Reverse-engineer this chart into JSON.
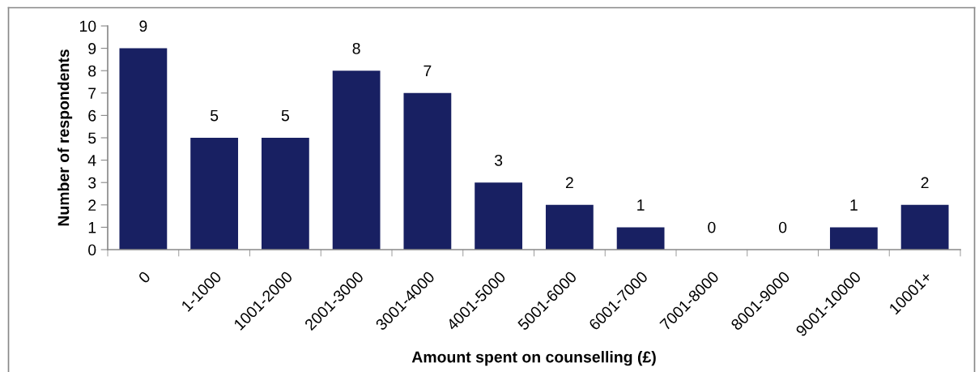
{
  "chart_data": {
    "type": "bar",
    "xlabel": "Amount spent on counselling (£)",
    "ylabel": "Number of respondents",
    "categories": [
      "0",
      "1-1000",
      "1001-2000",
      "2001-3000",
      "3001-4000",
      "4001-5000",
      "5001-6000",
      "6001-7000",
      "7001-8000",
      "8001-9000",
      "9001-10000",
      "10001+"
    ],
    "values": [
      9,
      5,
      5,
      8,
      7,
      3,
      2,
      1,
      0,
      0,
      1,
      2
    ],
    "color": "#182062",
    "ylim": [
      0,
      10
    ],
    "yticks": [
      0,
      1,
      2,
      3,
      4,
      5,
      6,
      7,
      8,
      9,
      10
    ],
    "data_labels": true,
    "grid": false,
    "legend": false
  }
}
